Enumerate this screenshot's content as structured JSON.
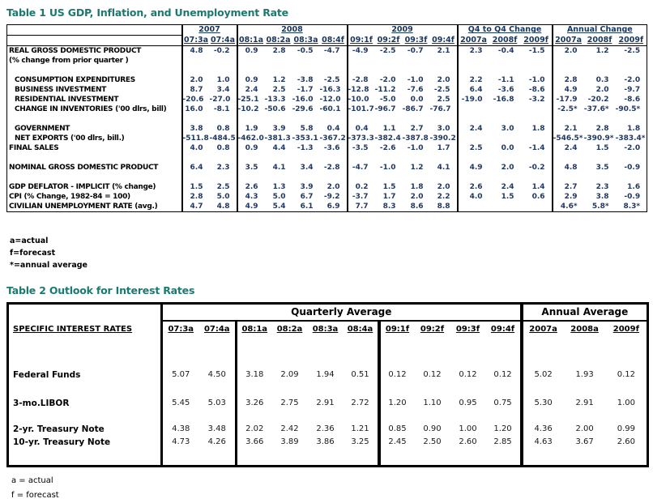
{
  "table1": {
    "title": "Table 1 US GDP, Inflation, and Unemployment Rate",
    "title_color": "#1b7a6e",
    "header_color": "#17365d",
    "value_color": "#1f3864",
    "year_groups": [
      {
        "label": "2007",
        "cols": 2
      },
      {
        "label": "2008",
        "cols": 4
      },
      {
        "label": "2009",
        "cols": 4
      },
      {
        "label": "Q4 to Q4 Change",
        "cols": 3
      },
      {
        "label": "Annual Change",
        "cols": 3
      }
    ],
    "col_headers": [
      "07:3a",
      "07:4a",
      "08:1a",
      "08:2a",
      "08:3a",
      "08:4f",
      "09:1f",
      "09:2f",
      "09:3f",
      "09:4f",
      "2007a",
      "2008f",
      "2009f",
      "2007a",
      "2008f",
      "2009f"
    ],
    "group_start_cols": [
      0,
      2,
      6,
      10,
      13
    ],
    "rows": [
      {
        "label": "REAL GROSS DOMESTIC PRODUCT",
        "indent": false,
        "values": [
          "4.8",
          "-0.2",
          "0.9",
          "2.8",
          "-0.5",
          "-4.7",
          "-4.9",
          "-2.5",
          "-0.7",
          "2.1",
          "2.3",
          "-0.4",
          "-1.5",
          "2.0",
          "1.2",
          "-2.5"
        ]
      },
      {
        "label": "(% change from prior quarter )",
        "indent": false,
        "values": [
          "",
          "",
          "",
          "",
          "",
          "",
          "",
          "",
          "",
          "",
          "",
          "",
          "",
          "",
          "",
          ""
        ]
      },
      {
        "label": "",
        "indent": false,
        "values": [
          "",
          "",
          "",
          "",
          "",
          "",
          "",
          "",
          "",
          "",
          "",
          "",
          "",
          "",
          "",
          ""
        ]
      },
      {
        "label": "CONSUMPTION EXPENDITURES",
        "indent": true,
        "values": [
          "2.0",
          "1.0",
          "0.9",
          "1.2",
          "-3.8",
          "-2.5",
          "-2.8",
          "-2.0",
          "-1.0",
          "2.0",
          "2.2",
          "-1.1",
          "-1.0",
          "2.8",
          "0.3",
          "-2.0"
        ]
      },
      {
        "label": "BUSINESS INVESTMENT",
        "indent": true,
        "values": [
          "8.7",
          "3.4",
          "2.4",
          "2.5",
          "-1.7",
          "-16.3",
          "-12.8",
          "-11.2",
          "-7.6",
          "-2.5",
          "6.4",
          "-3.6",
          "-8.6",
          "4.9",
          "2.0",
          "-9.7"
        ]
      },
      {
        "label": "RESIDENTIAL INVESTMENT",
        "indent": true,
        "values": [
          "-20.6",
          "-27.0",
          "-25.1",
          "-13.3",
          "-16.0",
          "-12.0",
          "-10.0",
          "-5.0",
          "0.0",
          "2.5",
          "-19.0",
          "-16.8",
          "-3.2",
          "-17.9",
          "-20.2",
          "-8.6"
        ]
      },
      {
        "label": "CHANGE IN INVENTORIES ('00 dlrs, bill)",
        "indent": true,
        "values": [
          "16.0",
          "-8.1",
          "-10.2",
          "-50.6",
          "-29.6",
          "-60.1",
          "-101.7",
          "-96.7",
          "-86.7",
          "-76.7",
          "",
          "",
          "",
          "-2.5*",
          "-37.6*",
          "-90.5*"
        ]
      },
      {
        "label": "",
        "indent": false,
        "values": [
          "",
          "",
          "",
          "",
          "",
          "",
          "",
          "",
          "",
          "",
          "",
          "",
          "",
          "",
          "",
          ""
        ]
      },
      {
        "label": "GOVERNMENT",
        "indent": true,
        "values": [
          "3.8",
          "0.8",
          "1.9",
          "3.9",
          "5.8",
          "0.4",
          "0.4",
          "1.1",
          "2.7",
          "3.0",
          "2.4",
          "3.0",
          "1.8",
          "2.1",
          "2.8",
          "1.8"
        ]
      },
      {
        "label": "NET EXPORTS ('00 dlrs, bill.)",
        "indent": true,
        "values": [
          "-511.8",
          "-484.5",
          "-462.0",
          "-381.3",
          "-353.1",
          "-367.2",
          "-373.3",
          "-382.4",
          "-387.8",
          "-390.2",
          "",
          "",
          "",
          "-546.5*",
          "-390.9*",
          "-383.4*"
        ]
      },
      {
        "label": "FINAL SALES",
        "indent": false,
        "values": [
          "4.0",
          "0.8",
          "0.9",
          "4.4",
          "-1.3",
          "-3.6",
          "-3.5",
          "-2.6",
          "-1.0",
          "1.7",
          "2.5",
          "0.0",
          "-1.4",
          "2.4",
          "1.5",
          "-2.0"
        ]
      },
      {
        "label": "",
        "indent": false,
        "values": [
          "",
          "",
          "",
          "",
          "",
          "",
          "",
          "",
          "",
          "",
          "",
          "",
          "",
          "",
          "",
          ""
        ]
      },
      {
        "label": "NOMINAL GROSS DOMESTIC PRODUCT",
        "indent": false,
        "values": [
          "6.4",
          "2.3",
          "3.5",
          "4.1",
          "3.4",
          "-2.8",
          "-4.7",
          "-1.0",
          "1.2",
          "4.1",
          "4.9",
          "2.0",
          "-0.2",
          "4.8",
          "3.5",
          "-0.9"
        ]
      },
      {
        "label": "",
        "indent": false,
        "values": [
          "",
          "",
          "",
          "",
          "",
          "",
          "",
          "",
          "",
          "",
          "",
          "",
          "",
          "",
          "",
          ""
        ]
      },
      {
        "label": "GDP DEFLATOR - IMPLICIT (% change)",
        "indent": false,
        "values": [
          "1.5",
          "2.5",
          "2.6",
          "1.3",
          "3.9",
          "2.0",
          "0.2",
          "1.5",
          "1.8",
          "2.0",
          "2.6",
          "2.4",
          "1.4",
          "2.7",
          "2.3",
          "1.6"
        ]
      },
      {
        "label": "CPI (% Change, 1982-84 = 100)",
        "indent": false,
        "values": [
          "2.8",
          "5.0",
          "4.3",
          "5.0",
          "6.7",
          "-9.2",
          "-3.7",
          "1.7",
          "2.0",
          "2.2",
          "4.0",
          "1.5",
          "0.6",
          "2.9",
          "3.8",
          "-0.9"
        ]
      },
      {
        "label": "CIVILIAN UNEMPLOYMENT RATE (avg.)",
        "indent": false,
        "values": [
          "4.7",
          "4.8",
          "4.9",
          "5.4",
          "6.1",
          "6.9",
          "7.7",
          "8.3",
          "8.6",
          "8.8",
          "",
          "",
          "",
          "4.6*",
          "5.8*",
          "8.3*"
        ]
      }
    ],
    "footnotes": [
      "a=actual",
      "f=forecast",
      "*=annual average"
    ]
  },
  "table2": {
    "title": "Table 2 Outlook for Interest Rates",
    "label_header": "SPECIFIC INTEREST RATES",
    "span_headers": [
      {
        "label": "Quarterly Average",
        "cols": 10
      },
      {
        "label": "Annual Average",
        "cols": 3
      }
    ],
    "col_headers": [
      "07:3a",
      "07:4a",
      "08:1a",
      "08:2a",
      "08:3a",
      "08:4a",
      "09:1f",
      "09:2f",
      "09:3f",
      "09:4f",
      "2007a",
      "2008a",
      "2009f"
    ],
    "group_start_cols": [
      0,
      2,
      6,
      10
    ],
    "rows": [
      {
        "label": "Federal Funds",
        "values": [
          "5.07",
          "4.50",
          "3.18",
          "2.09",
          "1.94",
          "0.51",
          "0.12",
          "0.12",
          "0.12",
          "0.12",
          "5.02",
          "1.93",
          "0.12"
        ]
      },
      {
        "label": "3-mo.LIBOR",
        "values": [
          "5.45",
          "5.03",
          "3.26",
          "2.75",
          "2.91",
          "2.72",
          "1.20",
          "1.10",
          "0.95",
          "0.75",
          "5.30",
          "2.91",
          "1.00"
        ]
      },
      {
        "label": "2-yr. Treasury Note",
        "values": [
          "4.38",
          "3.48",
          "2.02",
          "2.42",
          "2.36",
          "1.21",
          "0.85",
          "0.90",
          "1.00",
          "1.20",
          "4.36",
          "2.00",
          "0.99"
        ]
      },
      {
        "label": "10-yr. Treasury Note",
        "values": [
          "4.73",
          "4.26",
          "3.66",
          "3.89",
          "3.86",
          "3.25",
          "2.45",
          "2.50",
          "2.60",
          "2.85",
          "4.63",
          "3.67",
          "2.60"
        ]
      }
    ],
    "row_gaps_before": [
      38,
      19,
      16,
      0
    ],
    "bottom_pad": 20,
    "footnotes": [
      "a = actual",
      "f = forecast"
    ]
  }
}
